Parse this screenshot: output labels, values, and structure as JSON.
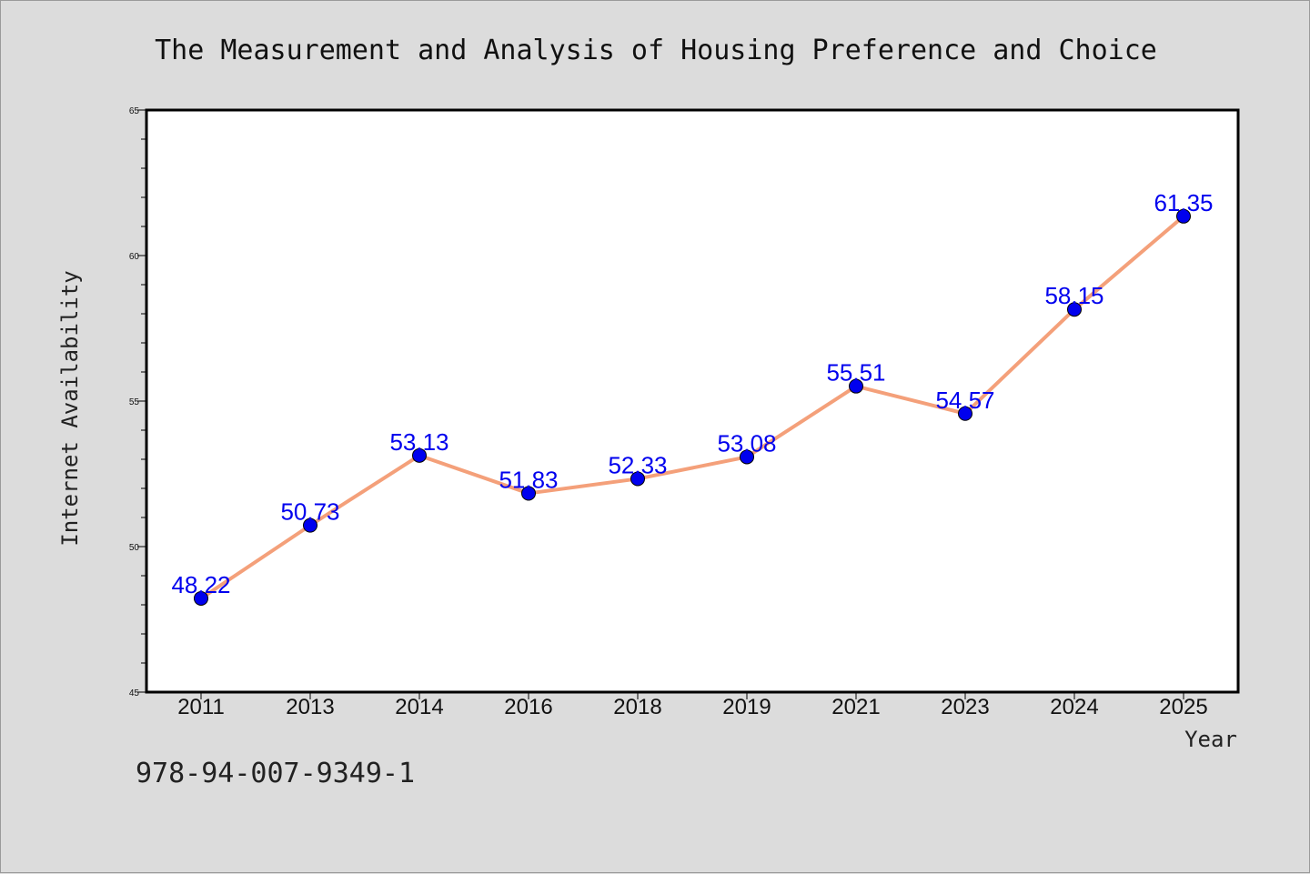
{
  "chart_data": {
    "type": "line",
    "title": "The Measurement and Analysis of Housing Preference and Choice",
    "xlabel": "Year",
    "ylabel": "Internet Availability",
    "categories": [
      "2011",
      "2013",
      "2014",
      "2016",
      "2018",
      "2019",
      "2021",
      "2023",
      "2024",
      "2025"
    ],
    "values": [
      48.22,
      50.73,
      53.13,
      51.83,
      52.33,
      53.08,
      55.51,
      54.57,
      58.15,
      61.35
    ],
    "data_labels": [
      "48.22",
      "50.73",
      "53.13",
      "51.83",
      "52.33",
      "53.08",
      "55.51",
      "54.57",
      "58.15",
      "61.35"
    ],
    "ylim": [
      45,
      65
    ],
    "yticks": [
      45,
      50,
      55,
      60,
      65
    ],
    "grid": false,
    "legend": "none",
    "colors": {
      "line": "#f4a07a",
      "marker": "#0000ee",
      "label": "#0000ee",
      "background": "#dcdcdc",
      "plot_background": "#ffffff"
    }
  },
  "footer": {
    "code": "978-94-007-9349-1"
  }
}
